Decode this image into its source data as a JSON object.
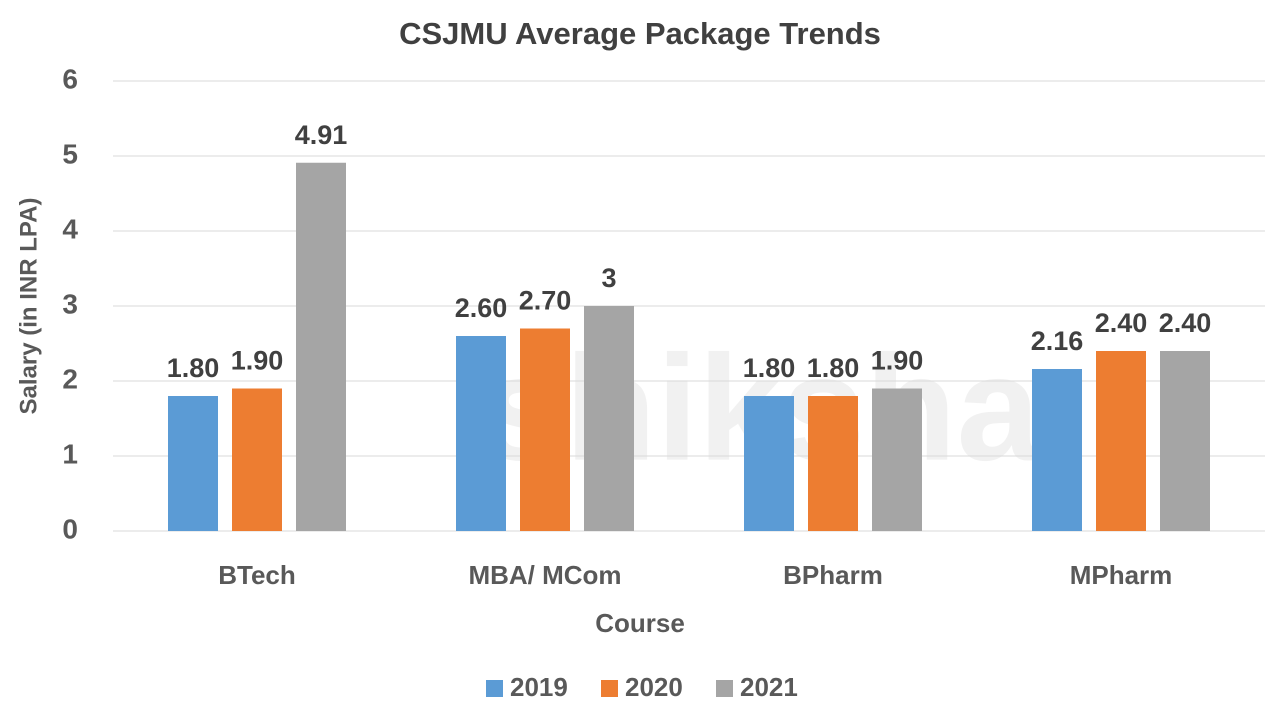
{
  "chart_data": {
    "type": "bar",
    "title": "CSJMU Average Package Trends",
    "watermark": "shiksha",
    "x_label": "Course",
    "y_label": "Salary (in INR LPA)",
    "categories": [
      "BTech",
      "MBA/ MCom",
      "BPharm",
      "MPharm"
    ],
    "series": [
      {
        "name": "2019",
        "color": "#5b9bd5",
        "values": [
          1.8,
          2.6,
          1.8,
          2.16
        ],
        "value_labels": [
          "1.80",
          "2.60",
          "1.80",
          "2.16"
        ]
      },
      {
        "name": "2020",
        "color": "#ed7d31",
        "values": [
          1.9,
          2.7,
          1.8,
          2.4
        ],
        "value_labels": [
          "1.90",
          "2.70",
          "1.80",
          "2.40"
        ]
      },
      {
        "name": "2021",
        "color": "#a5a5a5",
        "values": [
          4.91,
          3,
          1.9,
          2.4
        ],
        "value_labels": [
          "4.91",
          "3",
          "1.90",
          "2.40"
        ]
      }
    ],
    "ylim": [
      0,
      6
    ],
    "yticks": [
      0,
      1,
      2,
      3,
      4,
      5,
      6
    ],
    "grid": true,
    "legend": "bottom"
  }
}
